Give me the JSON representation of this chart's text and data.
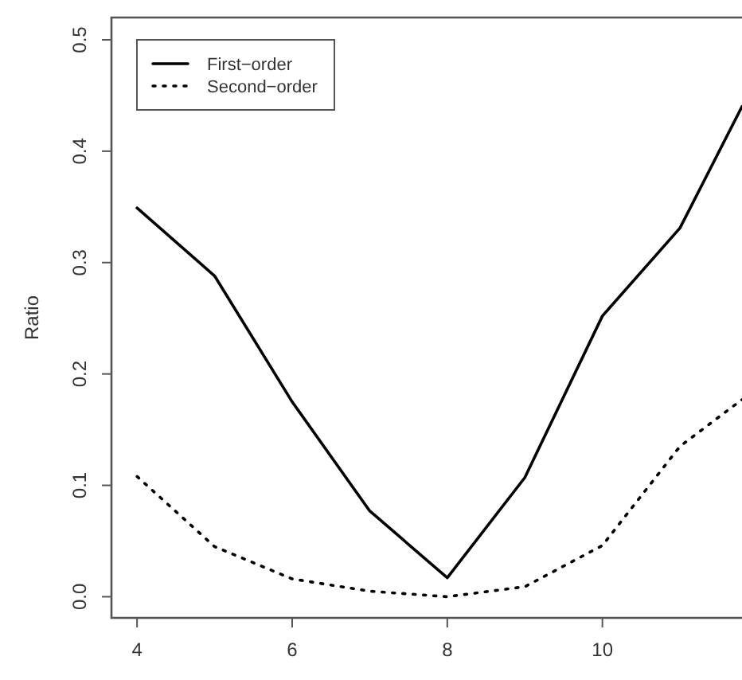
{
  "chart_data": {
    "type": "line",
    "ylabel": "Ratio",
    "x": [
      4,
      5,
      6,
      7,
      8,
      9,
      10,
      11,
      11.8
    ],
    "series": [
      {
        "name": "First−order",
        "color": "#000000",
        "line_style": "solid",
        "values": [
          0.349,
          0.288,
          0.175,
          0.077,
          0.017,
          0.107,
          0.252,
          0.331,
          0.44
        ]
      },
      {
        "name": "Second−order",
        "color": "#000000",
        "line_style": "dotted",
        "values": [
          0.108,
          0.045,
          0.016,
          0.005,
          0.0,
          0.009,
          0.046,
          0.135,
          0.177
        ]
      }
    ],
    "xlim": [
      3.67,
      11.8
    ],
    "ylim": [
      -0.019,
      0.52
    ],
    "xticks": [
      4,
      6,
      8,
      10
    ],
    "yticks": [
      {
        "value": 0,
        "label": "0.0"
      },
      0.1,
      0.2,
      0.3,
      0.4,
      0.5
    ],
    "grid": false,
    "legend": "top left",
    "marker": "none"
  }
}
